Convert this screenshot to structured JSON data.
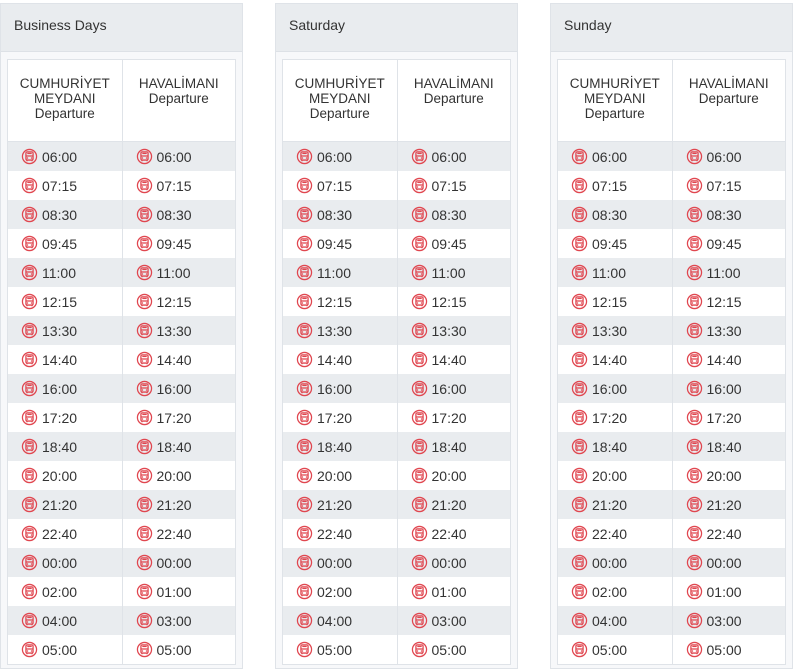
{
  "panels": [
    {
      "title": "Business Days",
      "columns": [
        "CUMHURİYET MEYDANI Departure",
        "HAVALİMANI Departure"
      ],
      "rows": [
        [
          "06:00",
          "06:00"
        ],
        [
          "07:15",
          "07:15"
        ],
        [
          "08:30",
          "08:30"
        ],
        [
          "09:45",
          "09:45"
        ],
        [
          "11:00",
          "11:00"
        ],
        [
          "12:15",
          "12:15"
        ],
        [
          "13:30",
          "13:30"
        ],
        [
          "14:40",
          "14:40"
        ],
        [
          "16:00",
          "16:00"
        ],
        [
          "17:20",
          "17:20"
        ],
        [
          "18:40",
          "18:40"
        ],
        [
          "20:00",
          "20:00"
        ],
        [
          "21:20",
          "21:20"
        ],
        [
          "22:40",
          "22:40"
        ],
        [
          "00:00",
          "00:00"
        ],
        [
          "02:00",
          "01:00"
        ],
        [
          "04:00",
          "03:00"
        ],
        [
          "05:00",
          "05:00"
        ]
      ]
    },
    {
      "title": "Saturday",
      "columns": [
        "CUMHURİYET MEYDANI Departure",
        "HAVALİMANI Departure"
      ],
      "rows": [
        [
          "06:00",
          "06:00"
        ],
        [
          "07:15",
          "07:15"
        ],
        [
          "08:30",
          "08:30"
        ],
        [
          "09:45",
          "09:45"
        ],
        [
          "11:00",
          "11:00"
        ],
        [
          "12:15",
          "12:15"
        ],
        [
          "13:30",
          "13:30"
        ],
        [
          "14:40",
          "14:40"
        ],
        [
          "16:00",
          "16:00"
        ],
        [
          "17:20",
          "17:20"
        ],
        [
          "18:40",
          "18:40"
        ],
        [
          "20:00",
          "20:00"
        ],
        [
          "21:20",
          "21:20"
        ],
        [
          "22:40",
          "22:40"
        ],
        [
          "00:00",
          "00:00"
        ],
        [
          "02:00",
          "01:00"
        ],
        [
          "04:00",
          "03:00"
        ],
        [
          "05:00",
          "05:00"
        ]
      ]
    },
    {
      "title": "Sunday",
      "columns": [
        "CUMHURİYET MEYDANI Departure",
        "HAVALİMANI Departure"
      ],
      "rows": [
        [
          "06:00",
          "06:00"
        ],
        [
          "07:15",
          "07:15"
        ],
        [
          "08:30",
          "08:30"
        ],
        [
          "09:45",
          "09:45"
        ],
        [
          "11:00",
          "11:00"
        ],
        [
          "12:15",
          "12:15"
        ],
        [
          "13:30",
          "13:30"
        ],
        [
          "14:40",
          "14:40"
        ],
        [
          "16:00",
          "16:00"
        ],
        [
          "17:20",
          "17:20"
        ],
        [
          "18:40",
          "18:40"
        ],
        [
          "20:00",
          "20:00"
        ],
        [
          "21:20",
          "21:20"
        ],
        [
          "22:40",
          "22:40"
        ],
        [
          "00:00",
          "00:00"
        ],
        [
          "02:00",
          "01:00"
        ],
        [
          "04:00",
          "03:00"
        ],
        [
          "05:00",
          "05:00"
        ]
      ]
    }
  ],
  "icon": "bus-icon",
  "icon_color": "#e0464f"
}
